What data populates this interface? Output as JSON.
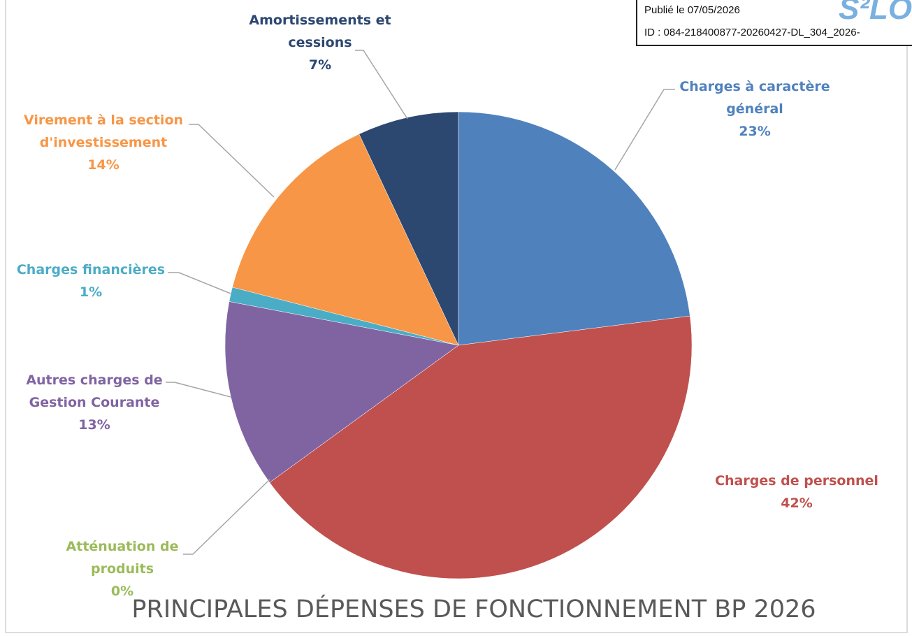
{
  "chart_data": {
    "type": "pie",
    "title": "PRINCIPALES DÉPENSES DE FONCTIONNEMENT BP 2026",
    "categories": [
      "Charges à caractère général",
      "Charges de personnel",
      "Atténuation de produits",
      "Autres charges de Gestion Courante",
      "Charges financières",
      "Virement à la section d'investissement",
      "Amortissements et cessions"
    ],
    "values": [
      23,
      42,
      0,
      13,
      1,
      14,
      7
    ],
    "value_labels": [
      "23%",
      "42%",
      "0%",
      "13%",
      "1%",
      "14%",
      "7%"
    ],
    "colors": [
      "#4f81bd",
      "#c0504d",
      "#9bbb59",
      "#8064a2",
      "#4bacc6",
      "#f79646",
      "#2c4770"
    ]
  },
  "stamp": {
    "published": "Publié le 07/05/2026",
    "id": "ID : 084-218400877-20260427-DL_304_2026-",
    "logo": "S²LO"
  }
}
